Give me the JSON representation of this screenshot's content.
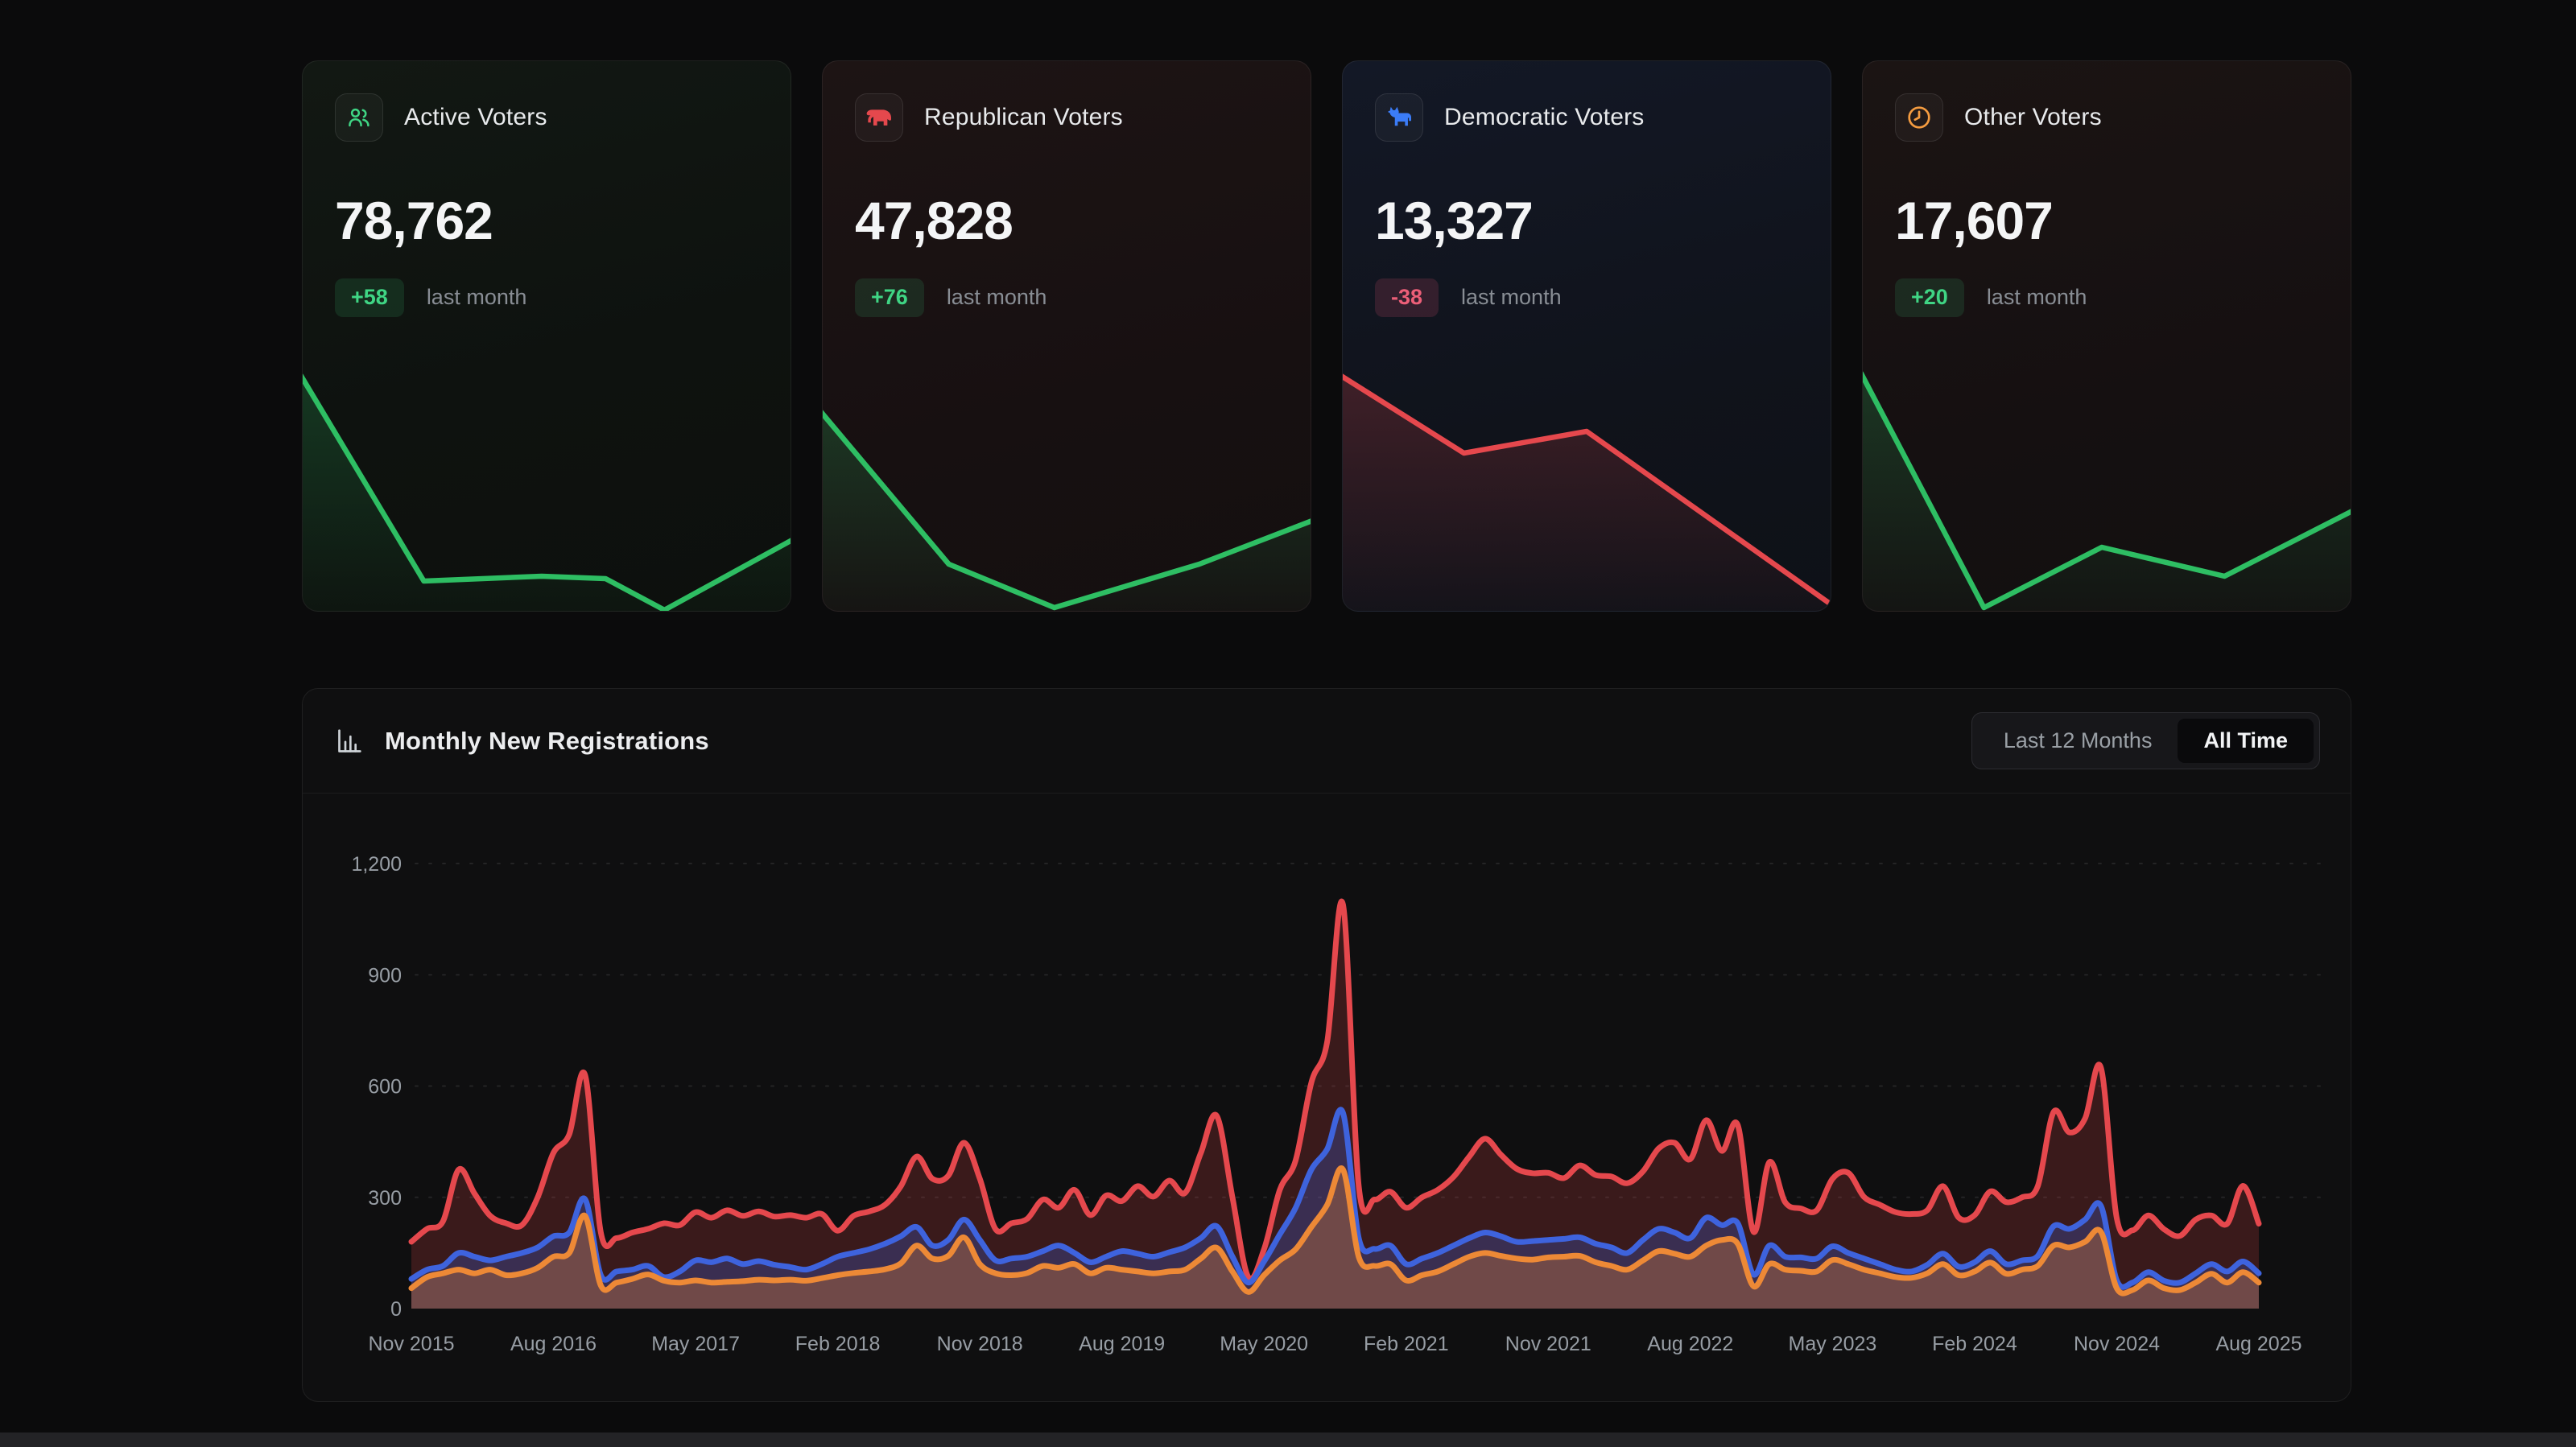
{
  "colors": {
    "page_bg": "#0b0b0c",
    "positive": "#3fd584",
    "negative": "#ec5f78",
    "republican_red": "#e5484d",
    "democratic_blue": "#3e63dd",
    "other_orange": "#ed8936",
    "spark_green": "#2ebe63",
    "axis_label": "#979da4"
  },
  "cards": [
    {
      "title": "Active Voters",
      "value": "78,762",
      "delta": "+58",
      "delta_direction": "up",
      "caption": "last month",
      "icon": "users-icon",
      "icon_color": "#3fd584",
      "spark_color": "#2ebe63",
      "spark": [
        [
          0,
          0.02
        ],
        [
          0.25,
          0.87
        ],
        [
          0.49,
          0.85
        ],
        [
          0.62,
          0.86
        ],
        [
          0.74,
          0.99
        ],
        [
          1,
          0.7
        ]
      ]
    },
    {
      "title": "Republican Voters",
      "value": "47,828",
      "delta": "+76",
      "delta_direction": "up",
      "caption": "last month",
      "icon": "elephant-icon",
      "icon_color": "#e5484d",
      "spark_color": "#2ebe63",
      "spark": [
        [
          0,
          0.17
        ],
        [
          0.26,
          0.8
        ],
        [
          0.475,
          0.98
        ],
        [
          0.77,
          0.8
        ],
        [
          1,
          0.62
        ]
      ]
    },
    {
      "title": "Democratic Voters",
      "value": "13,327",
      "delta": "-38",
      "delta_direction": "down",
      "caption": "last month",
      "icon": "donkey-icon",
      "icon_color": "#3b7cf7",
      "spark_color": "#e5484d",
      "spark": [
        [
          0,
          0.02
        ],
        [
          0.25,
          0.34
        ],
        [
          0.5,
          0.25
        ],
        [
          1,
          0.97
        ]
      ]
    },
    {
      "title": "Other Voters",
      "value": "17,607",
      "delta": "+20",
      "delta_direction": "up",
      "caption": "last month",
      "icon": "clock-icon",
      "icon_color": "#f59c40",
      "spark_color": "#2ebe63",
      "spark": [
        [
          0,
          0.01
        ],
        [
          0.25,
          0.98
        ],
        [
          0.49,
          0.73
        ],
        [
          0.74,
          0.85
        ],
        [
          1,
          0.58
        ]
      ]
    }
  ],
  "chart": {
    "title": "Monthly New Registrations",
    "range_options": [
      {
        "label": "Last 12 Months",
        "active": false
      },
      {
        "label": "All Time",
        "active": true
      }
    ]
  },
  "chart_data": {
    "type": "area",
    "x_start": "Nov 2015",
    "x_end": "Aug 2025",
    "x_labels": [
      "Nov 2015",
      "Aug 2016",
      "May 2017",
      "Feb 2018",
      "Nov 2018",
      "Aug 2019",
      "May 2020",
      "Feb 2021",
      "Nov 2021",
      "Aug 2022",
      "May 2023",
      "Feb 2024",
      "Nov 2024",
      "Aug 2025"
    ],
    "x_label_every_n_months": 9,
    "y_ticks": [
      0,
      300,
      600,
      900,
      1200
    ],
    "y_tick_labels": [
      "0",
      "300",
      "600",
      "900",
      "1,200"
    ],
    "ylim": [
      0,
      1200
    ],
    "grid": "dashed-horizontal",
    "legend": "none",
    "series": [
      {
        "name": "republican",
        "color": "#e5484d",
        "fill_opacity": 0.2,
        "values": [
          180,
          215,
          235,
          375,
          310,
          250,
          230,
          225,
          300,
          420,
          470,
          630,
          205,
          190,
          205,
          215,
          230,
          225,
          260,
          245,
          265,
          250,
          262,
          248,
          252,
          245,
          255,
          210,
          250,
          262,
          280,
          330,
          410,
          350,
          358,
          447,
          350,
          214,
          230,
          242,
          294,
          272,
          320,
          252,
          305,
          290,
          330,
          302,
          345,
          312,
          420,
          520,
          300,
          85,
          160,
          320,
          400,
          610,
          720,
          1090,
          330,
          294,
          315,
          272,
          300,
          320,
          355,
          410,
          458,
          415,
          377,
          365,
          366,
          352,
          386,
          360,
          356,
          338,
          370,
          432,
          447,
          403,
          508,
          425,
          495,
          207,
          395,
          287,
          270,
          265,
          350,
          366,
          301,
          280,
          260,
          255,
          265,
          330,
          245,
          252,
          316,
          287,
          300,
          330,
          530,
          475,
          513,
          650,
          244,
          211,
          251,
          214,
          196,
          240,
          251,
          229,
          331,
          229
        ]
      },
      {
        "name": "democratic",
        "color": "#3e63dd",
        "fill_opacity": 0.28,
        "values": [
          80,
          105,
          115,
          150,
          140,
          130,
          140,
          150,
          165,
          195,
          205,
          295,
          90,
          100,
          105,
          115,
          85,
          100,
          130,
          125,
          135,
          120,
          128,
          118,
          112,
          105,
          120,
          140,
          150,
          160,
          175,
          195,
          220,
          170,
          185,
          240,
          185,
          130,
          135,
          140,
          155,
          170,
          150,
          125,
          140,
          155,
          148,
          140,
          152,
          165,
          190,
          222,
          140,
          70,
          127,
          200,
          272,
          375,
          430,
          528,
          190,
          161,
          170,
          120,
          135,
          150,
          170,
          190,
          205,
          195,
          180,
          182,
          185,
          188,
          192,
          175,
          165,
          150,
          185,
          215,
          205,
          190,
          245,
          225,
          230,
          92,
          170,
          140,
          138,
          135,
          168,
          150,
          135,
          120,
          105,
          100,
          118,
          148,
          113,
          125,
          155,
          120,
          130,
          142,
          222,
          215,
          240,
          277,
          76,
          70,
          98,
          75,
          70,
          95,
          120,
          100,
          127,
          95
        ]
      },
      {
        "name": "other",
        "color": "#ed8936",
        "fill_opacity": 0.3,
        "values": [
          55,
          85,
          95,
          105,
          95,
          105,
          90,
          95,
          110,
          140,
          150,
          250,
          62,
          70,
          80,
          92,
          75,
          70,
          76,
          70,
          72,
          74,
          78,
          76,
          78,
          75,
          82,
          90,
          96,
          100,
          106,
          122,
          170,
          135,
          142,
          192,
          120,
          95,
          90,
          96,
          115,
          110,
          120,
          95,
          110,
          105,
          100,
          95,
          100,
          105,
          135,
          164,
          100,
          45,
          90,
          130,
          160,
          220,
          280,
          375,
          139,
          115,
          120,
          76,
          90,
          100,
          120,
          140,
          150,
          142,
          135,
          132,
          138,
          140,
          142,
          125,
          115,
          105,
          130,
          155,
          148,
          140,
          170,
          185,
          175,
          60,
          120,
          105,
          102,
          100,
          131,
          120,
          105,
          95,
          85,
          83,
          95,
          120,
          90,
          100,
          124,
          94,
          105,
          115,
          170,
          165,
          180,
          207,
          55,
          50,
          76,
          55,
          50,
          70,
          94,
          70,
          98,
          70
        ]
      }
    ]
  }
}
